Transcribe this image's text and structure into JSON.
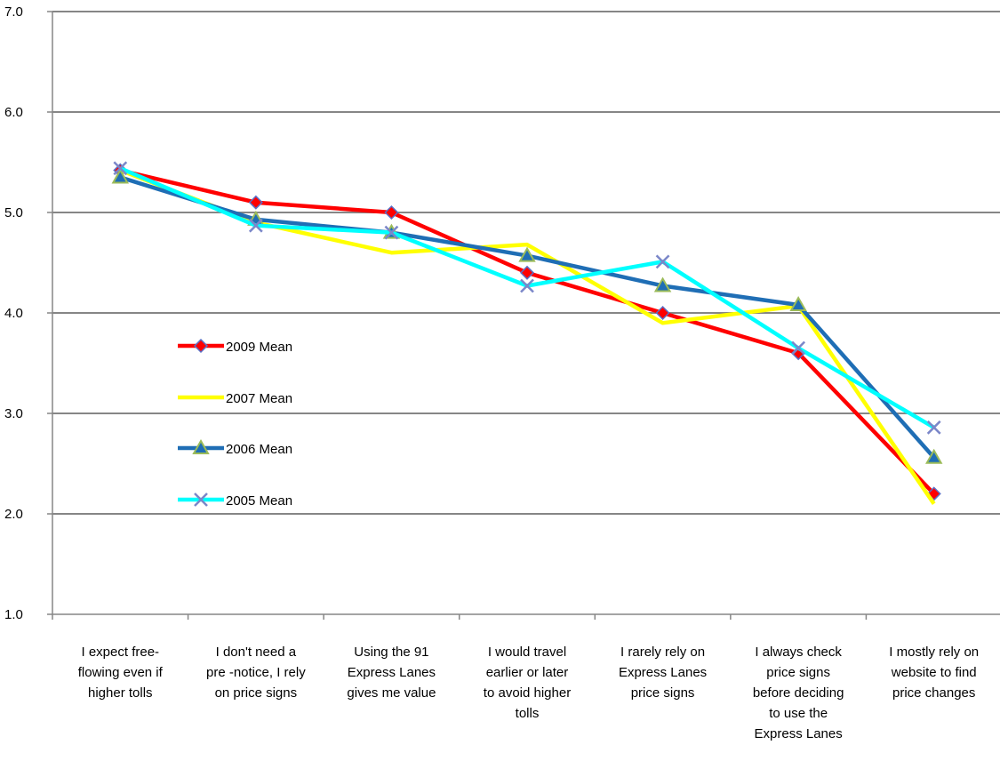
{
  "chart_data": {
    "type": "line",
    "categories": [
      [
        "I expect free-",
        "flowing even if",
        "higher tolls"
      ],
      [
        "I don't need a",
        "pre -notice, I rely",
        "on price signs"
      ],
      [
        "Using the 91",
        "Express Lanes",
        "gives me value"
      ],
      [
        "I would travel",
        "earlier or later",
        "to avoid higher",
        "tolls"
      ],
      [
        "I rarely rely on",
        "Express Lanes",
        "price signs"
      ],
      [
        "I always check",
        "price signs",
        "before deciding",
        "to use the",
        "Express Lanes"
      ],
      [
        "I mostly rely on",
        "website to find",
        "price changes"
      ]
    ],
    "series": [
      {
        "name": "2009 Mean",
        "color": "#ff0000",
        "marker": "diamond",
        "values": [
          5.42,
          5.1,
          5.0,
          4.4,
          4.0,
          3.6,
          2.2
        ]
      },
      {
        "name": "2007 Mean",
        "color": "#ffff00",
        "marker": "none",
        "values": [
          5.42,
          4.9,
          4.6,
          4.68,
          3.9,
          4.07,
          2.1
        ]
      },
      {
        "name": "2006 Mean",
        "color": "#1f6eb5",
        "marker": "triangle",
        "values": [
          5.35,
          4.93,
          4.8,
          4.57,
          4.27,
          4.08,
          2.56
        ]
      },
      {
        "name": "2005 Mean",
        "color": "#00ffff",
        "marker": "x",
        "values": [
          5.44,
          4.87,
          4.8,
          4.27,
          4.51,
          3.65,
          2.86
        ]
      }
    ],
    "yticks": [
      "1.0",
      "2.0",
      "3.0",
      "4.0",
      "5.0",
      "6.0",
      "7.0"
    ],
    "ylim": [
      1,
      7
    ],
    "grid": true,
    "legend_position": "inside-left"
  }
}
